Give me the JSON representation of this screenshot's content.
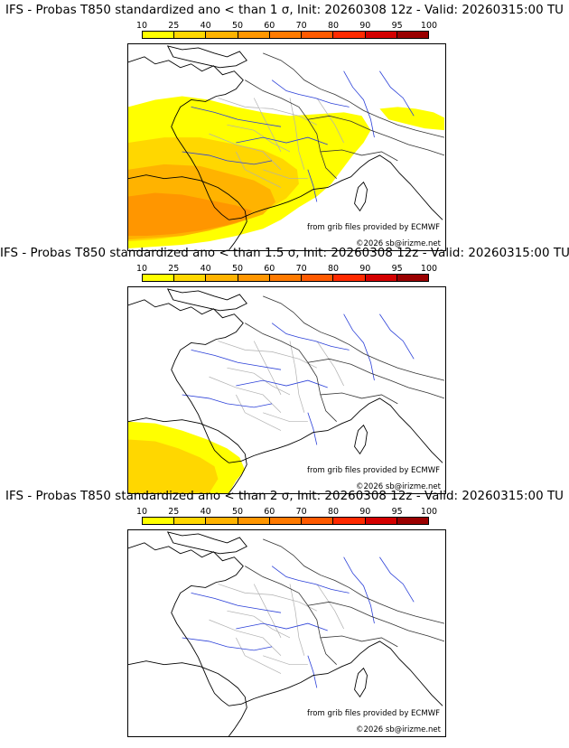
{
  "colorbar": {
    "ticks": [
      "10",
      "25",
      "40",
      "50",
      "60",
      "70",
      "80",
      "90",
      "95",
      "100"
    ],
    "colors": [
      "#ffff00",
      "#ffd700",
      "#ffb300",
      "#ff9600",
      "#ff7a00",
      "#ff5a00",
      "#ff2a00",
      "#d40000",
      "#9a0000",
      "#5a0000"
    ]
  },
  "panels": [
    {
      "title": "IFS - Probas T850  standardized ano < than 1 σ, Init: 20260308 12z - Valid: 20260315:00 TU",
      "credit": "from grib files provided by ECMWF",
      "copyright": "©2026 sb@irizme.net",
      "coverage": "large"
    },
    {
      "title": "IFS - Probas T850  standardized ano < than 1.5 σ, Init: 20260308 12z - Valid: 20260315:00 TU",
      "credit": "from grib files provided by ECMWF",
      "copyright": "©2026 sb@irizme.net",
      "coverage": "small"
    },
    {
      "title": "IFS - Probas T850  standardized ano < than 2 σ, Init: 20260308 12z - Valid: 20260315:00 TU",
      "credit": "from grib files provided by ECMWF",
      "copyright": "©2026 sb@irizme.net",
      "coverage": "none"
    }
  ]
}
